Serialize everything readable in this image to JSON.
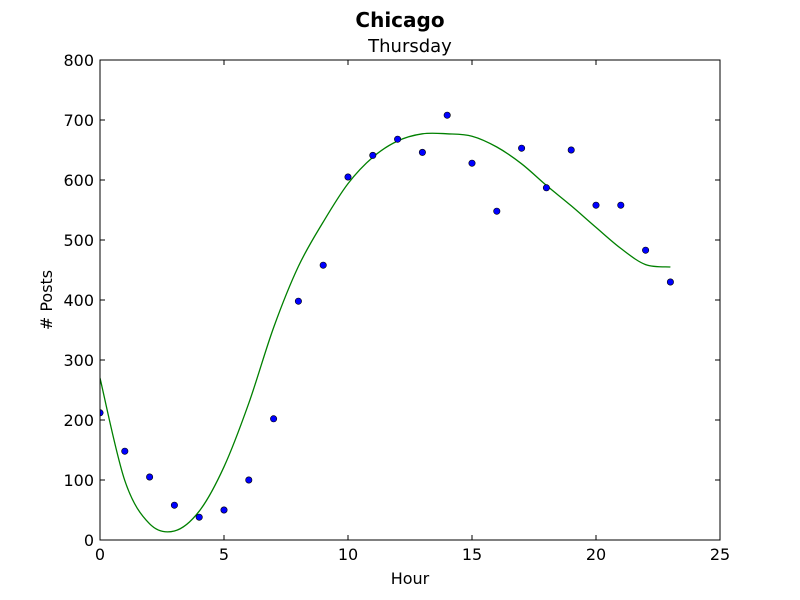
{
  "chart_data": {
    "type": "scatter",
    "suptitle": "Chicago",
    "title": "Thursday",
    "xlabel": "Hour",
    "ylabel": "# Posts",
    "xlim": [
      0,
      25
    ],
    "ylim": [
      0,
      800
    ],
    "xticks": [
      0,
      5,
      10,
      15,
      20,
      25
    ],
    "yticks": [
      0,
      100,
      200,
      300,
      400,
      500,
      600,
      700,
      800
    ],
    "grid": false,
    "series": [
      {
        "kind": "scatter",
        "color": "#0000ff",
        "x": [
          0,
          1,
          2,
          3,
          4,
          5,
          6,
          7,
          8,
          9,
          10,
          11,
          12,
          13,
          14,
          15,
          16,
          17,
          18,
          19,
          20,
          21,
          22,
          23
        ],
        "y": [
          212,
          148,
          105,
          58,
          38,
          50,
          100,
          202,
          398,
          458,
          605,
          641,
          668,
          646,
          708,
          628,
          548,
          653,
          587,
          650,
          558,
          558,
          483,
          430
        ]
      },
      {
        "kind": "fit-line",
        "color": "#008000",
        "x": [
          0,
          1,
          2,
          3,
          4,
          5,
          6,
          7,
          8,
          9,
          10,
          11,
          12,
          13,
          14,
          15,
          16,
          17,
          18,
          19,
          20,
          21,
          22,
          23
        ],
        "y": [
          270,
          99,
          27,
          15,
          48,
          122,
          228,
          354,
          456,
          530,
          594,
          638,
          665,
          677,
          677,
          673,
          655,
          627,
          591,
          557,
          521,
          486,
          459,
          455
        ]
      }
    ]
  }
}
